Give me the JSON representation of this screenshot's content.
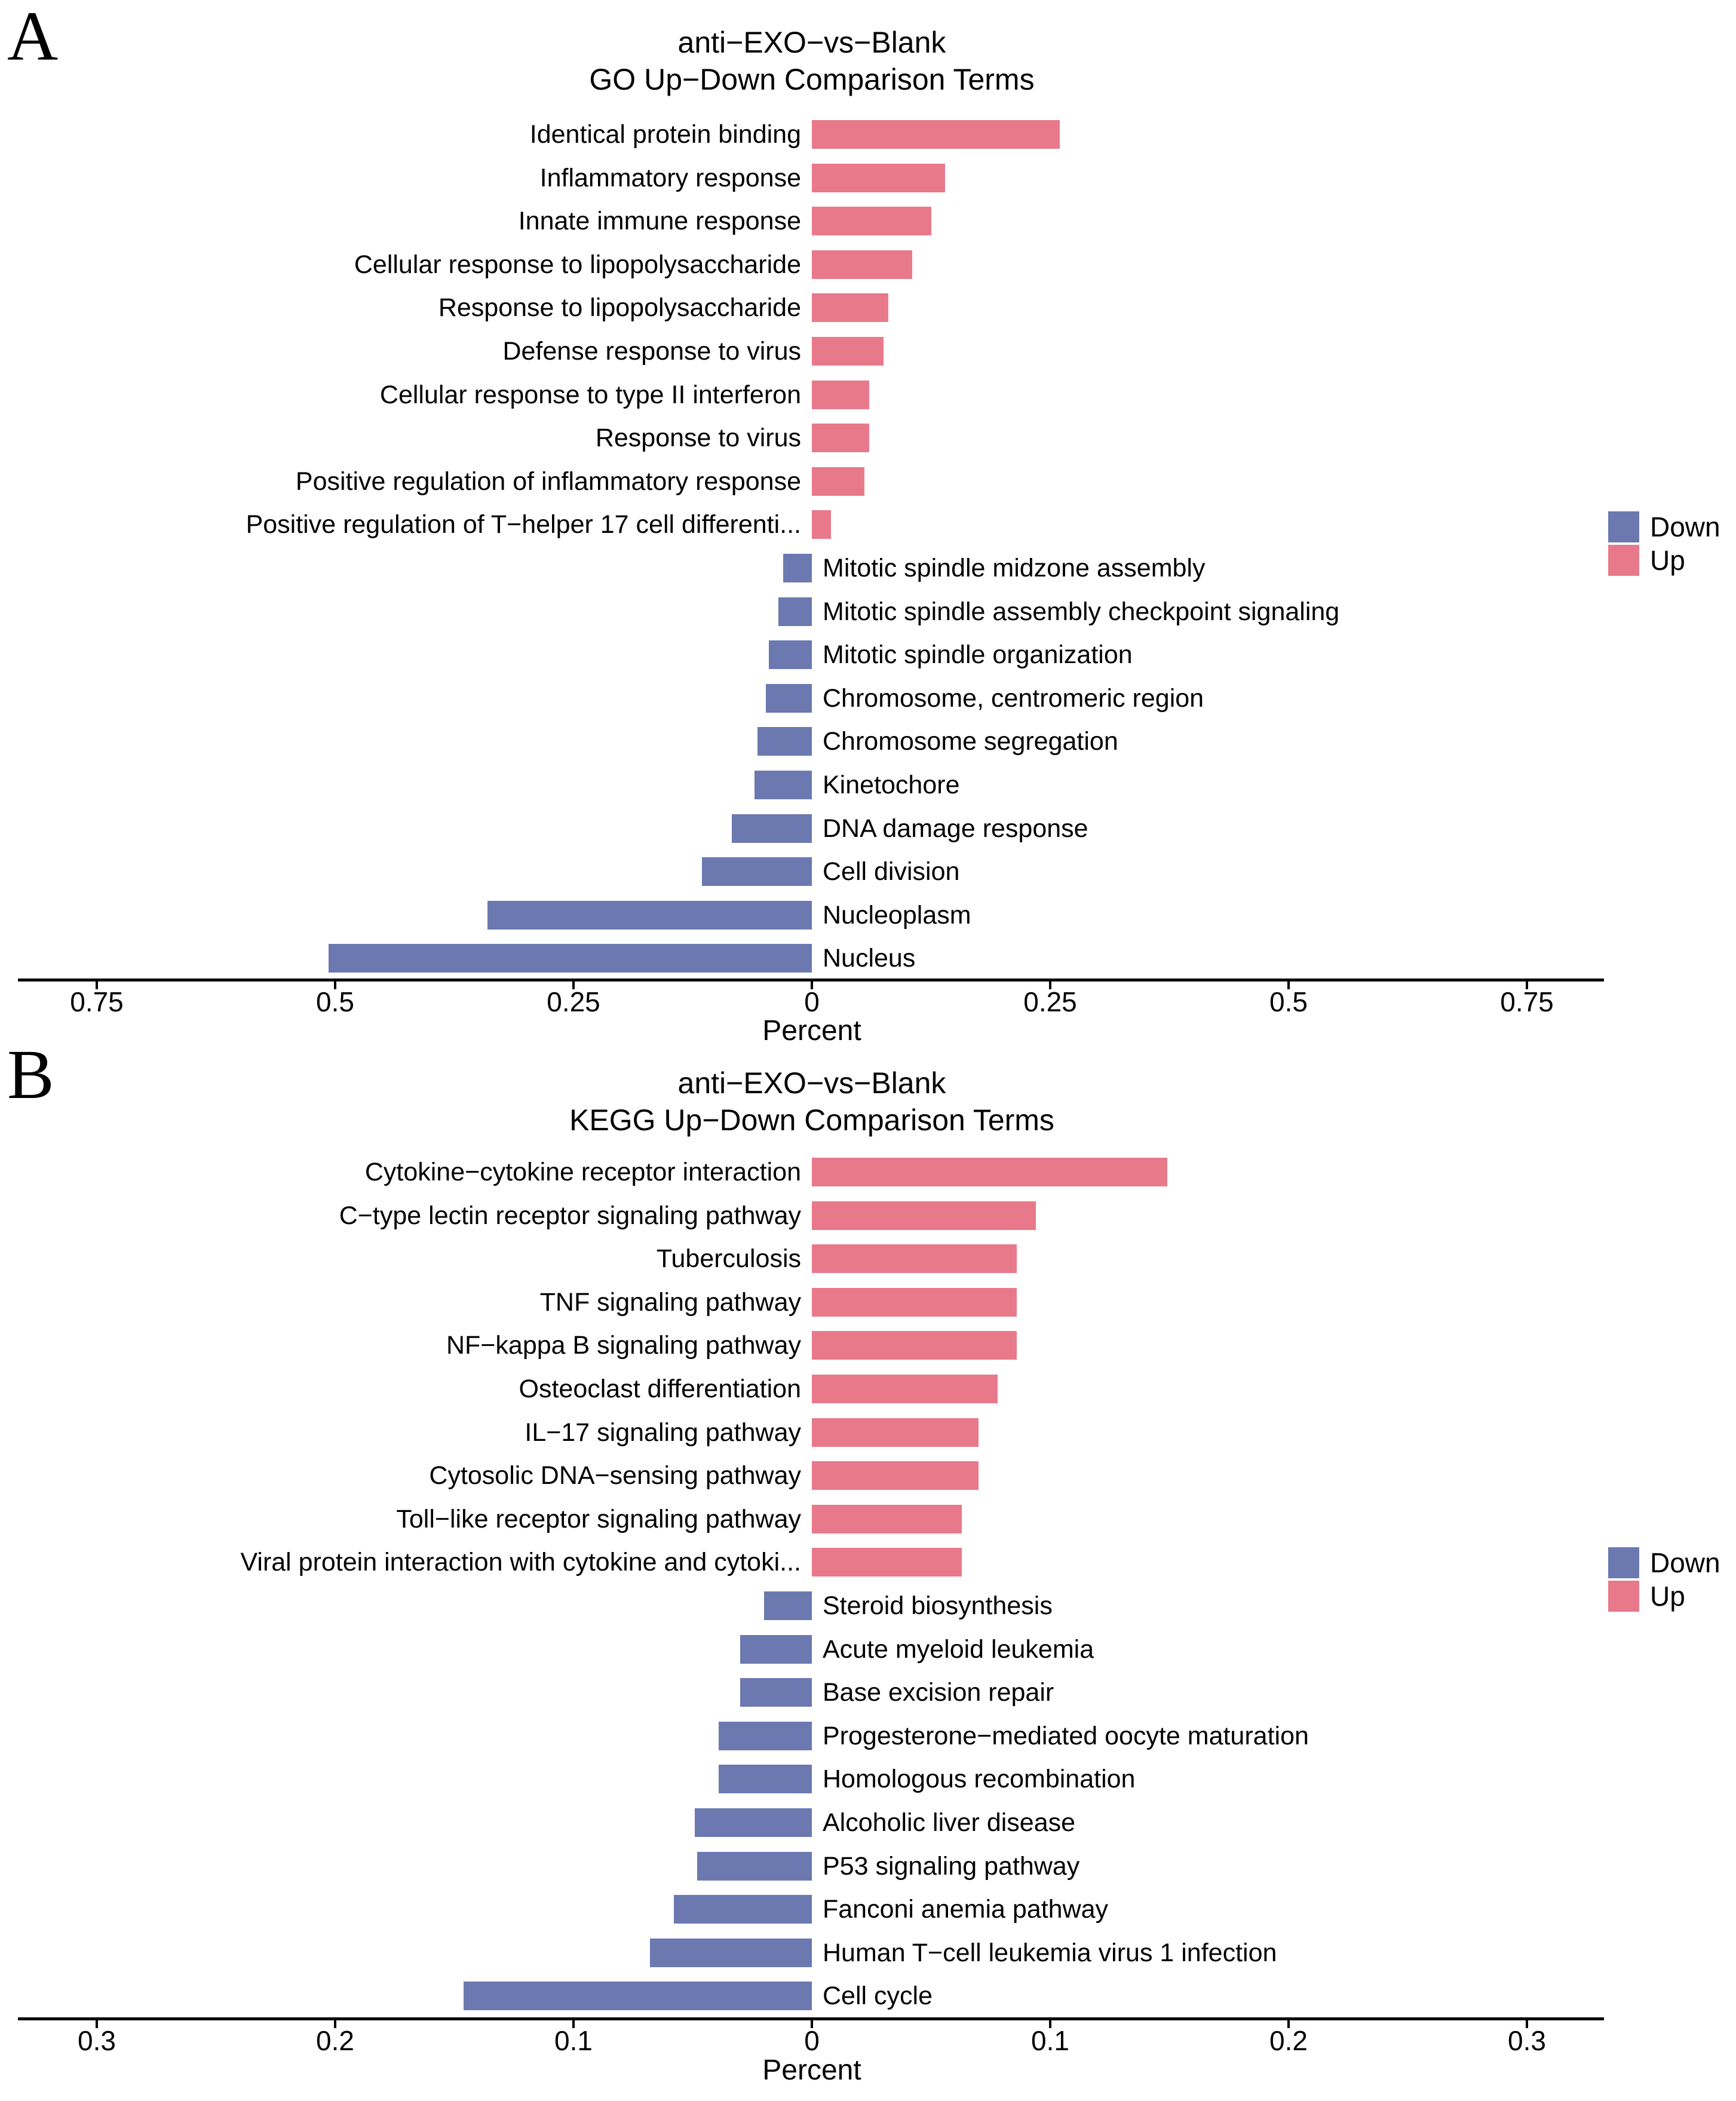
{
  "figure_title": "anti−EXO−vs−Blank Up−Down Comparison (GO and KEGG)",
  "colors": {
    "down": "#6b79b0",
    "up": "#e8798a",
    "axis": "#000000",
    "background": "#ffffff"
  },
  "chart_data": [
    {
      "type": "bar",
      "orientation": "horizontal-diverging",
      "panel_letter": "A",
      "title": "anti−EXO−vs−Blank",
      "subtitle": "GO Up−Down Comparison Terms",
      "xlabel": "Percent",
      "xlim": [
        -0.83,
        0.83
      ],
      "x_ticks": [
        -0.75,
        -0.5,
        -0.25,
        0,
        0.25,
        0.5,
        0.75
      ],
      "x_tick_labels": [
        "0.75",
        "0.5",
        "0.25",
        "0",
        "0.25",
        "0.5",
        "0.75"
      ],
      "legend_position": "right",
      "legend": [
        {
          "name": "Down",
          "color": "#6b79b0"
        },
        {
          "name": "Up",
          "color": "#e8798a"
        }
      ],
      "items": [
        {
          "term": "Identical protein binding",
          "group": "Up",
          "percent": 0.26
        },
        {
          "term": "Inflammatory response",
          "group": "Up",
          "percent": 0.14
        },
        {
          "term": "Innate immune response",
          "group": "Up",
          "percent": 0.125
        },
        {
          "term": "Cellular response to lipopolysaccharide",
          "group": "Up",
          "percent": 0.105
        },
        {
          "term": "Response to lipopolysaccharide",
          "group": "Up",
          "percent": 0.08
        },
        {
          "term": "Defense response to virus",
          "group": "Up",
          "percent": 0.075
        },
        {
          "term": "Cellular response to type II interferon",
          "group": "Up",
          "percent": 0.06
        },
        {
          "term": "Response to virus",
          "group": "Up",
          "percent": 0.06
        },
        {
          "term": "Positive regulation of inflammatory response",
          "group": "Up",
          "percent": 0.055
        },
        {
          "term": "Positive regulation of T−helper 17 cell differenti...",
          "group": "Up",
          "percent": 0.02
        },
        {
          "term": "Mitotic spindle midzone assembly",
          "group": "Down",
          "percent": 0.03
        },
        {
          "term": "Mitotic spindle assembly checkpoint signaling",
          "group": "Down",
          "percent": 0.035
        },
        {
          "term": "Mitotic spindle organization",
          "group": "Down",
          "percent": 0.045
        },
        {
          "term": "Chromosome, centromeric region",
          "group": "Down",
          "percent": 0.048
        },
        {
          "term": "Chromosome segregation",
          "group": "Down",
          "percent": 0.057
        },
        {
          "term": "Kinetochore",
          "group": "Down",
          "percent": 0.06
        },
        {
          "term": "DNA damage response",
          "group": "Down",
          "percent": 0.084
        },
        {
          "term": "Cell division",
          "group": "Down",
          "percent": 0.115
        },
        {
          "term": "Nucleoplasm",
          "group": "Down",
          "percent": 0.34
        },
        {
          "term": "Nucleus",
          "group": "Down",
          "percent": 0.507
        }
      ]
    },
    {
      "type": "bar",
      "orientation": "horizontal-diverging",
      "panel_letter": "B",
      "title": "anti−EXO−vs−Blank",
      "subtitle": "KEGG Up−Down Comparison Terms",
      "xlabel": "Percent",
      "xlim": [
        -0.333,
        0.333
      ],
      "x_ticks": [
        -0.3,
        -0.2,
        -0.1,
        0,
        0.1,
        0.2,
        0.3
      ],
      "x_tick_labels": [
        "0.3",
        "0.2",
        "0.1",
        "0",
        "0.1",
        "0.2",
        "0.3"
      ],
      "legend_position": "right",
      "legend": [
        {
          "name": "Down",
          "color": "#6b79b0"
        },
        {
          "name": "Up",
          "color": "#e8798a"
        }
      ],
      "items": [
        {
          "term": "Cytokine−cytokine receptor interaction",
          "group": "Up",
          "percent": 0.149
        },
        {
          "term": "C−type lectin receptor signaling pathway",
          "group": "Up",
          "percent": 0.094
        },
        {
          "term": "Tuberculosis",
          "group": "Up",
          "percent": 0.086
        },
        {
          "term": "TNF signaling pathway",
          "group": "Up",
          "percent": 0.086
        },
        {
          "term": "NF−kappa B signaling pathway",
          "group": "Up",
          "percent": 0.086
        },
        {
          "term": "Osteoclast differentiation",
          "group": "Up",
          "percent": 0.078
        },
        {
          "term": "IL−17 signaling pathway",
          "group": "Up",
          "percent": 0.07
        },
        {
          "term": "Cytosolic DNA−sensing pathway",
          "group": "Up",
          "percent": 0.07
        },
        {
          "term": "Toll−like receptor signaling pathway",
          "group": "Up",
          "percent": 0.063
        },
        {
          "term": "Viral protein interaction with cytokine and cytoki...",
          "group": "Up",
          "percent": 0.063
        },
        {
          "term": "Steroid biosynthesis",
          "group": "Down",
          "percent": 0.02
        },
        {
          "term": "Acute myeloid leukemia",
          "group": "Down",
          "percent": 0.03
        },
        {
          "term": "Base excision repair",
          "group": "Down",
          "percent": 0.03
        },
        {
          "term": "Progesterone−mediated oocyte maturation",
          "group": "Down",
          "percent": 0.039
        },
        {
          "term": "Homologous recombination",
          "group": "Down",
          "percent": 0.039
        },
        {
          "term": "Alcoholic liver disease",
          "group": "Down",
          "percent": 0.049
        },
        {
          "term": "P53 signaling pathway",
          "group": "Down",
          "percent": 0.048
        },
        {
          "term": "Fanconi anemia pathway",
          "group": "Down",
          "percent": 0.058
        },
        {
          "term": "Human T−cell leukemia virus 1 infection",
          "group": "Down",
          "percent": 0.068
        },
        {
          "term": "Cell cycle",
          "group": "Down",
          "percent": 0.146
        }
      ]
    }
  ]
}
